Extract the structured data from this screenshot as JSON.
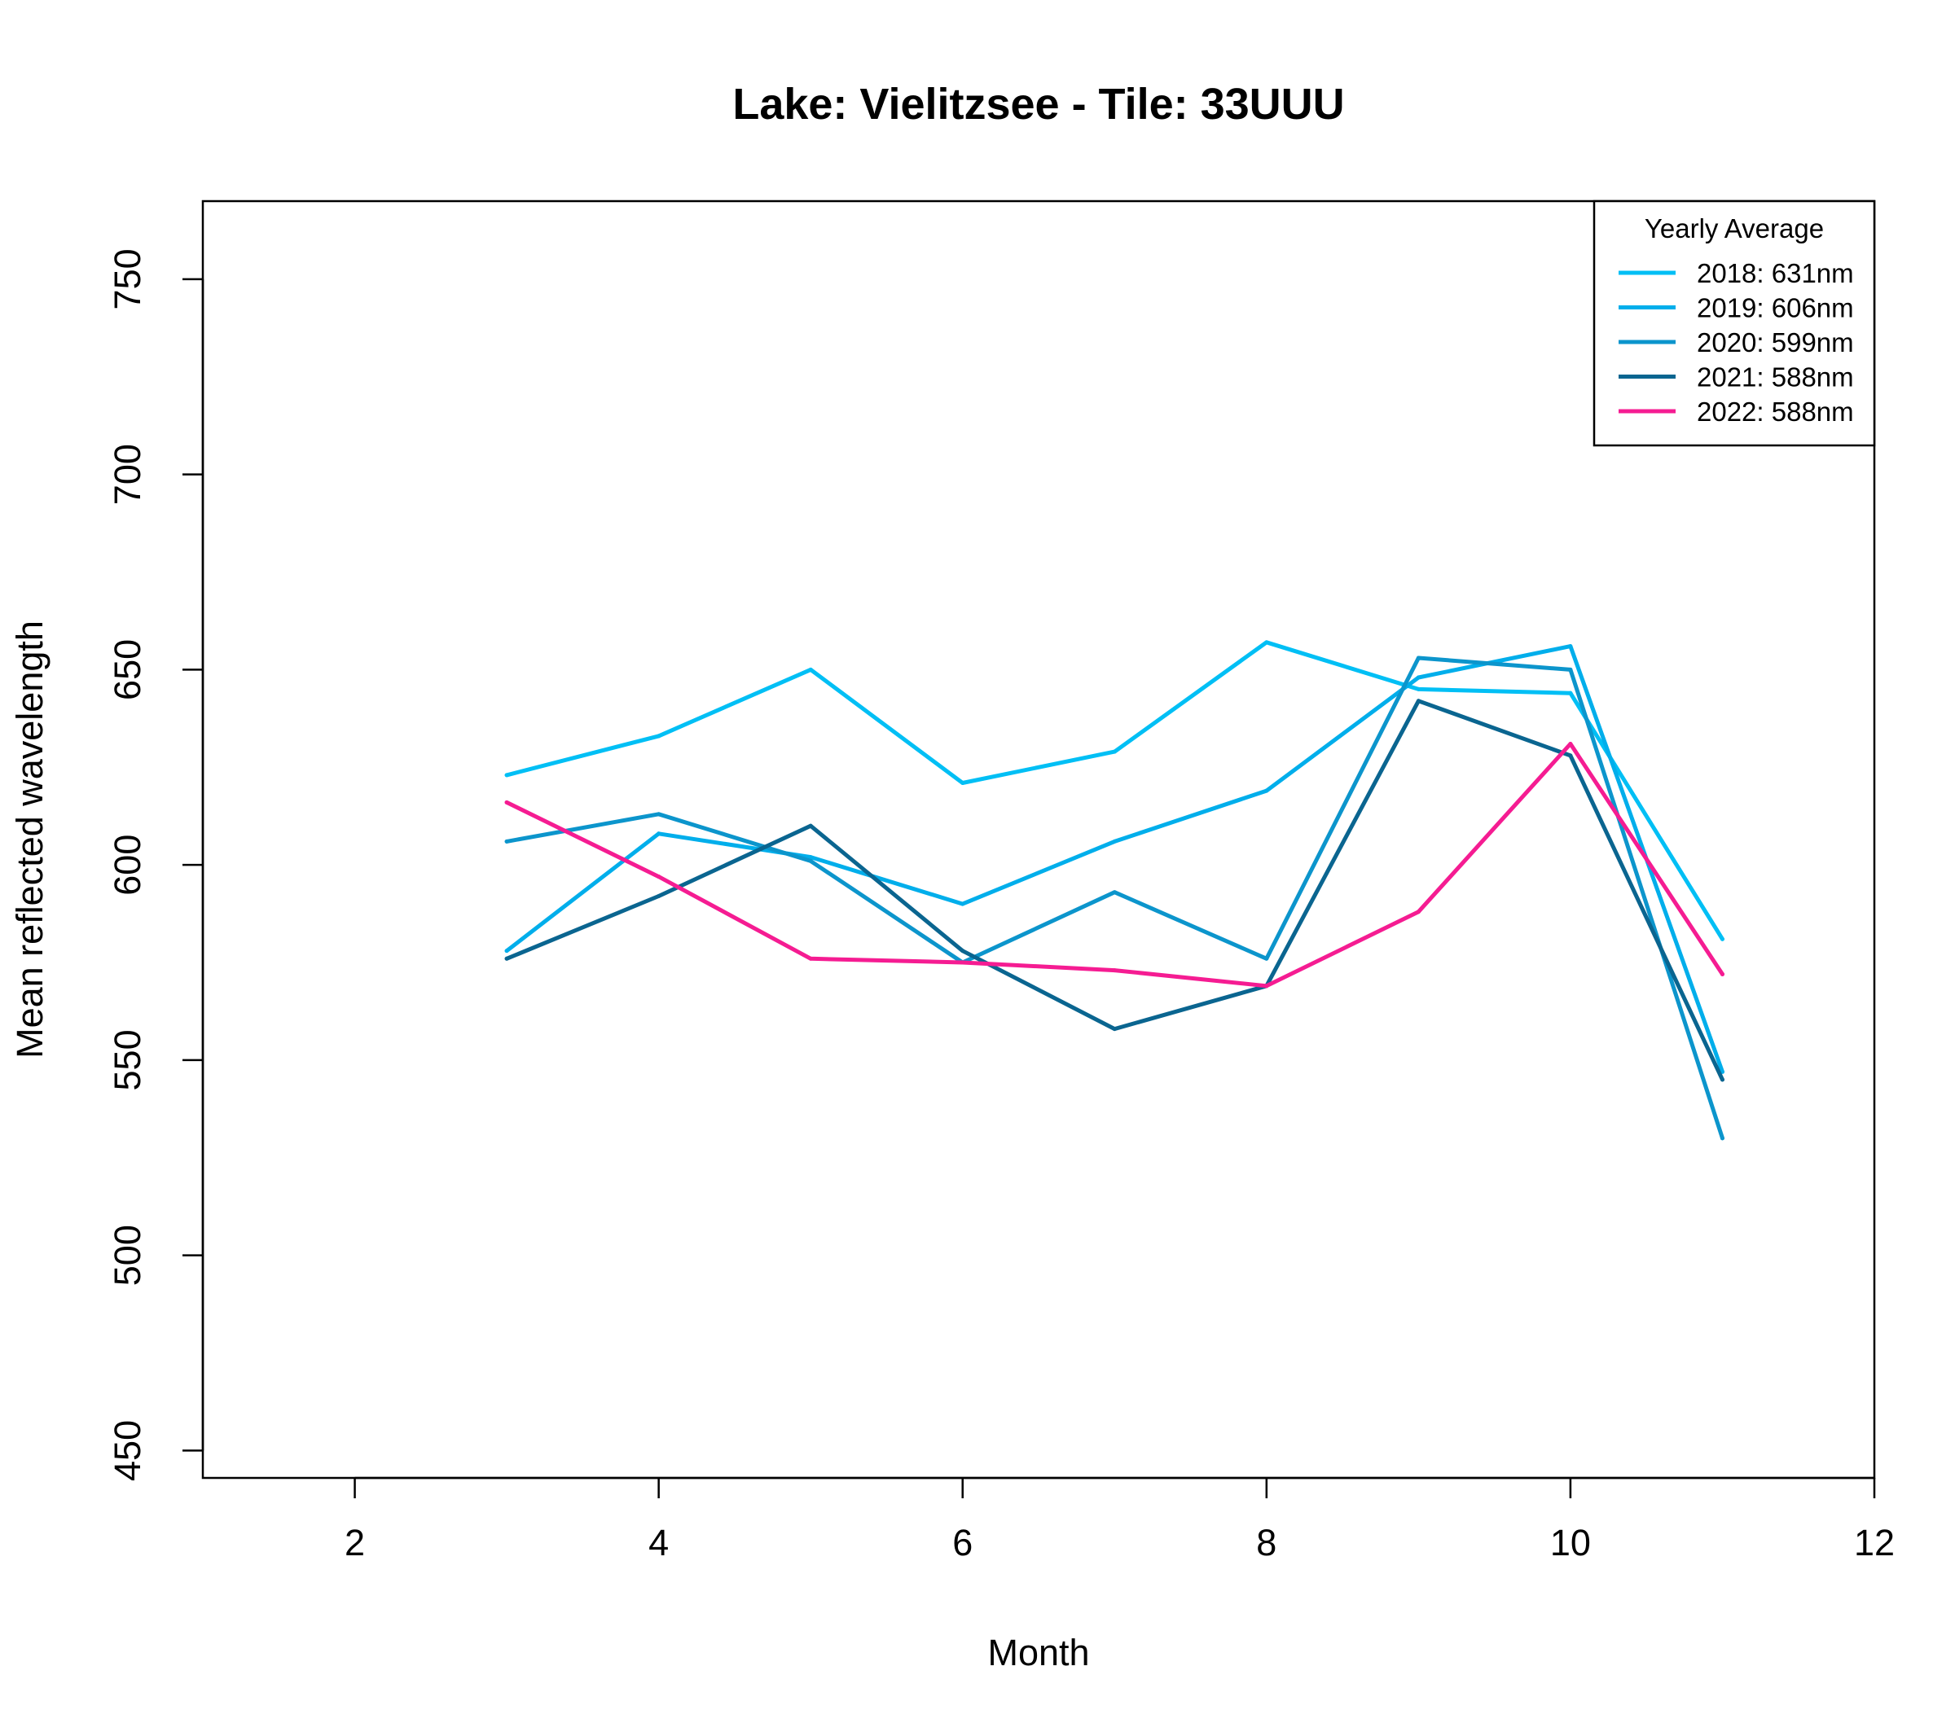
{
  "chart_data": {
    "type": "line",
    "title": "Lake: Vielitzsee  - Tile: 33UUU",
    "xlabel": "Month",
    "ylabel": "Mean reflected wavelength",
    "xlim": [
      1,
      12
    ],
    "ylim": [
      443,
      770
    ],
    "xticks": [
      2,
      4,
      6,
      8,
      10,
      12
    ],
    "yticks": [
      450,
      500,
      550,
      600,
      650,
      700,
      750
    ],
    "grid": false,
    "legend": {
      "title": "Yearly Average",
      "position": "top-right"
    },
    "x": [
      3,
      4,
      5,
      6,
      7,
      8,
      9,
      10,
      11
    ],
    "series": [
      {
        "name": "2018: 631nm",
        "color": "#00BFF5",
        "values": [
          623,
          633,
          650,
          621,
          629,
          657,
          645,
          644,
          581
        ]
      },
      {
        "name": "2019: 606nm",
        "color": "#00AEEB",
        "values": [
          578,
          608,
          602,
          590,
          606,
          619,
          648,
          656,
          547
        ]
      },
      {
        "name": "2020: 599nm",
        "color": "#0C95CC",
        "values": [
          606,
          613,
          601,
          575,
          593,
          576,
          653,
          650,
          530
        ]
      },
      {
        "name": "2021: 588nm",
        "color": "#0A6590",
        "values": [
          576,
          592,
          610,
          578,
          558,
          569,
          642,
          628,
          545
        ]
      },
      {
        "name": "2022: 588nm",
        "color": "#F51C92",
        "values": [
          616,
          597,
          576,
          575,
          573,
          569,
          588,
          631,
          572
        ]
      }
    ]
  }
}
